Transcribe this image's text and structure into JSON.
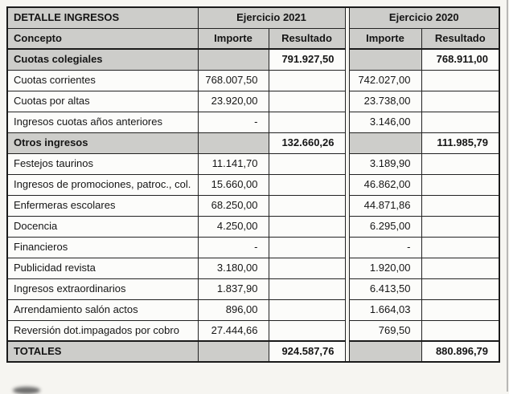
{
  "document": {
    "table": {
      "title": "DETALLE INGRESOS",
      "groups": {
        "y2021": "Ejercicio 2021",
        "y2020": "Ejercicio 2020"
      },
      "headers": {
        "concepto": "Concepto",
        "importe": "Importe",
        "resultado": "Resultado"
      },
      "rows": [
        {
          "type": "section",
          "label": "Cuotas colegiales",
          "importe_2021": "",
          "resultado_2021": "791.927,50",
          "importe_2020": "",
          "resultado_2020": "768.911,00"
        },
        {
          "type": "data",
          "label": "Cuotas corrientes",
          "importe_2021": "768.007,50",
          "resultado_2021": "",
          "importe_2020": "742.027,00",
          "resultado_2020": ""
        },
        {
          "type": "data",
          "label": "Cuotas por altas",
          "importe_2021": "23.920,00",
          "resultado_2021": "",
          "importe_2020": "23.738,00",
          "resultado_2020": ""
        },
        {
          "type": "data",
          "label": "Ingresos cuotas años anteriores",
          "importe_2021": "-",
          "resultado_2021": "",
          "importe_2020": "3.146,00",
          "resultado_2020": ""
        },
        {
          "type": "section",
          "label": "Otros ingresos",
          "importe_2021": "",
          "resultado_2021": "132.660,26",
          "importe_2020": "",
          "resultado_2020": "111.985,79"
        },
        {
          "type": "data",
          "label": "Festejos taurinos",
          "importe_2021": "11.141,70",
          "resultado_2021": "",
          "importe_2020": "3.189,90",
          "resultado_2020": ""
        },
        {
          "type": "data",
          "label": "Ingresos de promociones, patroc., col.",
          "importe_2021": "15.660,00",
          "resultado_2021": "",
          "importe_2020": "46.862,00",
          "resultado_2020": ""
        },
        {
          "type": "data",
          "label": "Enfermeras escolares",
          "importe_2021": "68.250,00",
          "resultado_2021": "",
          "importe_2020": "44.871,86",
          "resultado_2020": ""
        },
        {
          "type": "data",
          "label": "Docencia",
          "importe_2021": "4.250,00",
          "resultado_2021": "",
          "importe_2020": "6.295,00",
          "resultado_2020": ""
        },
        {
          "type": "data",
          "label": "Financieros",
          "importe_2021": "-",
          "resultado_2021": "",
          "importe_2020": "-",
          "resultado_2020": ""
        },
        {
          "type": "data",
          "label": "Publicidad revista",
          "importe_2021": "3.180,00",
          "resultado_2021": "",
          "importe_2020": "1.920,00",
          "resultado_2020": ""
        },
        {
          "type": "data",
          "label": "Ingresos extraordinarios",
          "importe_2021": "1.837,90",
          "resultado_2021": "",
          "importe_2020": "6.413,50",
          "resultado_2020": ""
        },
        {
          "type": "data",
          "label": "Arrendamiento salón actos",
          "importe_2021": "896,00",
          "resultado_2021": "",
          "importe_2020": "1.664,03",
          "resultado_2020": ""
        },
        {
          "type": "data",
          "label": "Reversión dot.impagados por cobro",
          "importe_2021": "27.444,66",
          "resultado_2021": "",
          "importe_2020": "769,50",
          "resultado_2020": ""
        },
        {
          "type": "total",
          "label": "TOTALES",
          "importe_2021": "",
          "resultado_2021": "924.587,76",
          "importe_2020": "",
          "resultado_2020": "880.896,79"
        }
      ],
      "colors": {
        "header_fill": "#cdcdca",
        "border": "#1a1a1a",
        "paper": "#f6f5f1",
        "cell_background": "#fcfcfa"
      }
    }
  }
}
